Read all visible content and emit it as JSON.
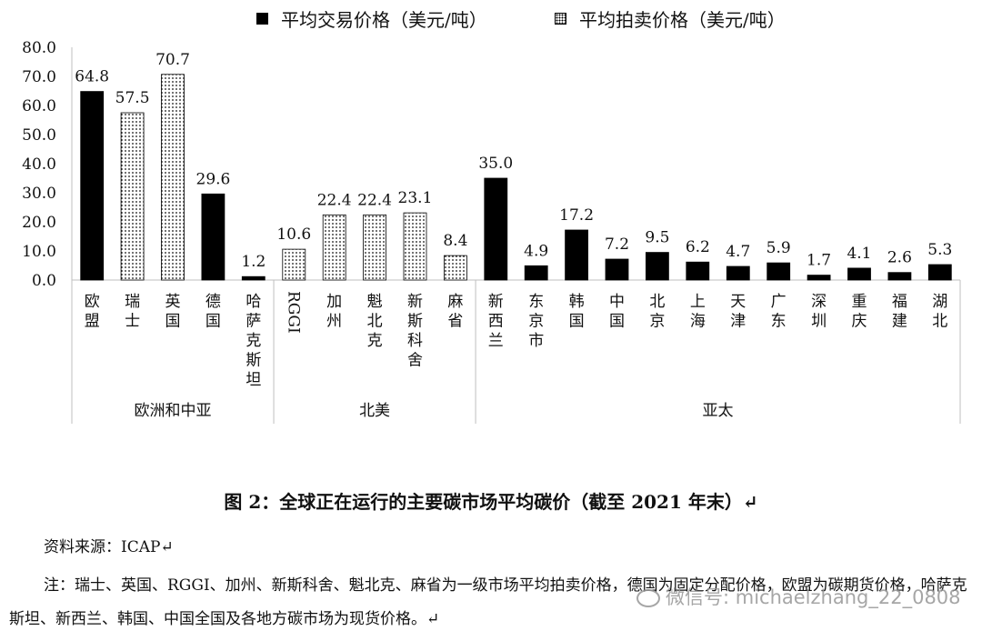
{
  "legend": [
    {
      "label": "平均交易价格（美元/吨）",
      "pattern": "solid"
    },
    {
      "label": "平均拍卖价格（美元/吨）",
      "pattern": "dot"
    }
  ],
  "chart_data": {
    "type": "bar",
    "ylim": [
      0,
      80
    ],
    "yticks": [
      "0.0",
      "10.0",
      "20.0",
      "30.0",
      "40.0",
      "50.0",
      "60.0",
      "70.0",
      "80.0"
    ],
    "groups": [
      {
        "name": "欧洲和中亚",
        "categories": [
          {
            "label": "欧盟",
            "value": 64.8,
            "display": "64.8",
            "type": "trade"
          },
          {
            "label": "瑞士",
            "value": 57.5,
            "display": "57.5",
            "type": "auction"
          },
          {
            "label": "英国",
            "value": 70.7,
            "display": "70.7",
            "type": "auction"
          },
          {
            "label": "德国",
            "value": 29.6,
            "display": "29.6",
            "type": "trade"
          },
          {
            "label": "哈萨克斯坦",
            "value": 1.2,
            "display": "1.2",
            "type": "trade"
          }
        ]
      },
      {
        "name": "北美",
        "categories": [
          {
            "label": "RGGI",
            "value": 10.6,
            "display": "10.6",
            "type": "auction"
          },
          {
            "label": "加州",
            "value": 22.4,
            "display": "22.4",
            "type": "auction"
          },
          {
            "label": "魁北克",
            "value": 22.4,
            "display": "22.4",
            "type": "auction"
          },
          {
            "label": "新斯科舍",
            "value": 23.1,
            "display": "23.1",
            "type": "auction"
          },
          {
            "label": "麻省",
            "value": 8.4,
            "display": "8.4",
            "type": "auction"
          }
        ]
      },
      {
        "name": "亚太",
        "categories": [
          {
            "label": "新西兰",
            "value": 35.0,
            "display": "35.0",
            "type": "trade"
          },
          {
            "label": "东京市",
            "value": 4.9,
            "display": "4.9",
            "type": "trade"
          },
          {
            "label": "韩国",
            "value": 17.2,
            "display": "17.2",
            "type": "trade"
          },
          {
            "label": "中国",
            "value": 7.2,
            "display": "7.2",
            "type": "trade"
          },
          {
            "label": "北京",
            "value": 9.5,
            "display": "9.5",
            "type": "trade"
          },
          {
            "label": "上海",
            "value": 6.2,
            "display": "6.2",
            "type": "trade"
          },
          {
            "label": "天津",
            "value": 4.7,
            "display": "4.7",
            "type": "trade"
          },
          {
            "label": "广东",
            "value": 5.9,
            "display": "5.9",
            "type": "trade"
          },
          {
            "label": "深圳",
            "value": 1.7,
            "display": "1.7",
            "type": "trade"
          },
          {
            "label": "重庆",
            "value": 4.1,
            "display": "4.1",
            "type": "trade"
          },
          {
            "label": "福建",
            "value": 2.6,
            "display": "2.6",
            "type": "trade"
          },
          {
            "label": "湖北",
            "value": 5.3,
            "display": "5.3",
            "type": "trade"
          }
        ]
      }
    ]
  },
  "caption": "图 2：全球正在运行的主要碳市场平均碳价（截至 2021 年末）↵",
  "source": "资料来源：ICAP↵",
  "note": "注：瑞士、英国、RGGI、加州、新斯科舍、魁北克、麻省为一级市场平均拍卖价格，德国为固定分配价格，欧盟为碳期货价格，哈萨克斯坦、新西兰、韩国、中国全国及各地方碳市场为现货价格。↵",
  "watermark": "微信号: michaelzhang_22_0808"
}
